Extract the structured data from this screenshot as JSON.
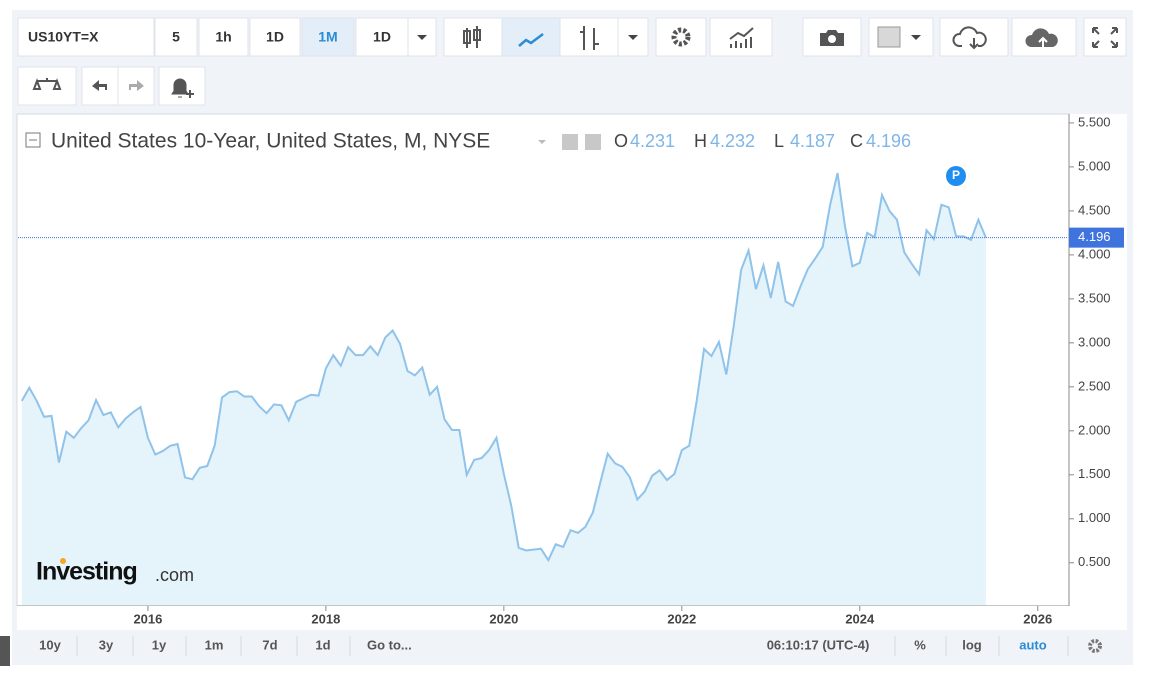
{
  "toolbar": {
    "symbol": "US10YT=X",
    "intervals": [
      "5",
      "1h",
      "1D",
      "1M",
      "1D"
    ],
    "active_interval": 3
  },
  "chart_data": {
    "type": "line",
    "title": "United States 10-Year, United States, M, NYSE",
    "ohlc": [
      {
        "label": "O",
        "value": 4.231
      },
      {
        "label": "H",
        "value": 4.232
      },
      {
        "label": "L",
        "value": 4.187
      },
      {
        "label": "C",
        "value": 4.196
      }
    ],
    "last_value": 4.196,
    "marker": "P",
    "logo": {
      "brand": "Investing",
      "suffix": ".com"
    },
    "x": [
      2014.583,
      2014.667,
      2014.75,
      2014.833,
      2014.917,
      2015.0,
      2015.083,
      2015.167,
      2015.25,
      2015.333,
      2015.417,
      2015.5,
      2015.583,
      2015.667,
      2015.75,
      2015.833,
      2015.917,
      2016.0,
      2016.083,
      2016.167,
      2016.25,
      2016.333,
      2016.417,
      2016.5,
      2016.583,
      2016.667,
      2016.75,
      2016.833,
      2016.917,
      2017.0,
      2017.083,
      2017.167,
      2017.25,
      2017.333,
      2017.417,
      2017.5,
      2017.583,
      2017.667,
      2017.75,
      2017.833,
      2017.917,
      2018.0,
      2018.083,
      2018.167,
      2018.25,
      2018.333,
      2018.417,
      2018.5,
      2018.583,
      2018.667,
      2018.75,
      2018.833,
      2018.917,
      2019.0,
      2019.083,
      2019.167,
      2019.25,
      2019.333,
      2019.417,
      2019.5,
      2019.583,
      2019.667,
      2019.75,
      2019.833,
      2019.917,
      2020.0,
      2020.083,
      2020.167,
      2020.25,
      2020.333,
      2020.417,
      2020.5,
      2020.583,
      2020.667,
      2020.75,
      2020.833,
      2020.917,
      2021.0,
      2021.083,
      2021.167,
      2021.25,
      2021.333,
      2021.417,
      2021.5,
      2021.583,
      2021.667,
      2021.75,
      2021.833,
      2021.917,
      2022.0,
      2022.083,
      2022.167,
      2022.25,
      2022.333,
      2022.417,
      2022.5,
      2022.583,
      2022.667,
      2022.75,
      2022.833,
      2022.917,
      2023.0,
      2023.083,
      2023.167,
      2023.25,
      2023.333,
      2023.417,
      2023.5,
      2023.583,
      2023.667,
      2023.75,
      2023.833,
      2023.917,
      2024.0,
      2024.083,
      2024.167,
      2024.25,
      2024.333,
      2024.417,
      2024.5,
      2024.583,
      2024.667,
      2024.75,
      2024.833,
      2024.917,
      2025.0,
      2025.083,
      2025.167,
      2025.25,
      2025.333,
      2025.417
    ],
    "series": [
      {
        "name": "US10YT=X",
        "color": "#8fc3ea",
        "fill": "#e5f3fb",
        "values": [
          2.34,
          2.49,
          2.34,
          2.16,
          2.17,
          1.64,
          1.99,
          1.92,
          2.03,
          2.12,
          2.35,
          2.18,
          2.21,
          2.04,
          2.14,
          2.21,
          2.27,
          1.92,
          1.73,
          1.77,
          1.83,
          1.85,
          1.47,
          1.45,
          1.58,
          1.6,
          1.83,
          2.38,
          2.44,
          2.45,
          2.39,
          2.39,
          2.28,
          2.2,
          2.3,
          2.29,
          2.12,
          2.33,
          2.37,
          2.41,
          2.4,
          2.71,
          2.86,
          2.74,
          2.95,
          2.86,
          2.86,
          2.96,
          2.86,
          3.06,
          3.14,
          2.99,
          2.68,
          2.63,
          2.72,
          2.41,
          2.5,
          2.13,
          2.01,
          2.01,
          1.5,
          1.67,
          1.69,
          1.78,
          1.92,
          1.51,
          1.15,
          0.67,
          0.64,
          0.65,
          0.66,
          0.53,
          0.71,
          0.68,
          0.87,
          0.84,
          0.91,
          1.07,
          1.41,
          1.74,
          1.63,
          1.59,
          1.47,
          1.22,
          1.31,
          1.49,
          1.55,
          1.44,
          1.51,
          1.78,
          1.83,
          2.34,
          2.93,
          2.85,
          3.01,
          2.64,
          3.19,
          3.83,
          4.05,
          3.61,
          3.88,
          3.51,
          3.92,
          3.47,
          3.42,
          3.64,
          3.84,
          3.96,
          4.09,
          4.57,
          4.93,
          4.33,
          3.87,
          3.91,
          4.25,
          4.2,
          4.68,
          4.5,
          4.4,
          4.03,
          3.9,
          3.78,
          4.28,
          4.18,
          4.57,
          4.54,
          4.21,
          4.21,
          4.17,
          4.4,
          4.196
        ]
      }
    ],
    "xlim": [
      2014.54,
      2026.34
    ],
    "xticks": [
      2016,
      2018,
      2020,
      2022,
      2024,
      2026
    ],
    "ylim": [
      0.02,
      5.59
    ],
    "yticks": [
      {
        "value": 0.5,
        "label": "0.500"
      },
      {
        "value": 1.0,
        "label": "1.000"
      },
      {
        "value": 1.5,
        "label": "1.500"
      },
      {
        "value": 2.0,
        "label": "2.000"
      },
      {
        "value": 2.5,
        "label": "2.500"
      },
      {
        "value": 3.0,
        "label": "3.000"
      },
      {
        "value": 3.5,
        "label": "3.500"
      },
      {
        "value": 4.0,
        "label": "4.000"
      },
      {
        "value": 4.5,
        "label": "4.500"
      },
      {
        "value": 5.0,
        "label": "5.000"
      },
      {
        "value": 5.5,
        "label": "5.500"
      }
    ],
    "grid": false,
    "badge_color": "#3f73de"
  },
  "bottom_bar": {
    "ranges": [
      "10y",
      "3y",
      "1y",
      "1m",
      "7d",
      "1d"
    ],
    "goto": "Go to...",
    "time": "06:10:17 (UTC-4)",
    "percent": "%",
    "log": "log",
    "auto": "auto"
  }
}
